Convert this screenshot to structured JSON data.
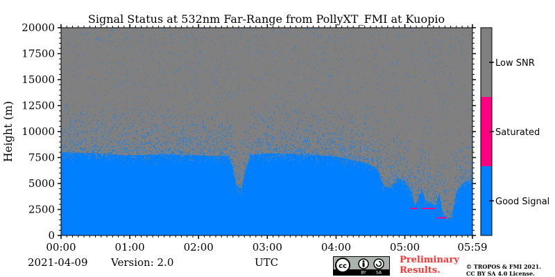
{
  "chart_data": {
    "type": "heatmap",
    "title": "Signal Status at 532nm Far-Range from PollyXT_FMI at Kuopio",
    "ylabel": "Height (m)",
    "xlabel": "UTC",
    "x_ticks": [
      "00:00",
      "01:00",
      "02:00",
      "03:00",
      "04:00",
      "05:00",
      "05:59"
    ],
    "x_range_hours": [
      0,
      5.9833
    ],
    "y_ticks": [
      0,
      2500,
      5000,
      7500,
      10000,
      12500,
      15000,
      17500,
      20000
    ],
    "ylim": [
      0,
      20000
    ],
    "categories": [
      {
        "name": "Low SNR",
        "color": "#808080"
      },
      {
        "name": "Saturated",
        "color": "#ff0080"
      },
      {
        "name": "Good Signal",
        "color": "#0080ff"
      }
    ],
    "good_signal_top_profile": [
      {
        "t": 0.0,
        "h": 8000
      },
      {
        "t": 0.5,
        "h": 7900
      },
      {
        "t": 1.0,
        "h": 7700
      },
      {
        "t": 1.5,
        "h": 7800
      },
      {
        "t": 2.0,
        "h": 7700
      },
      {
        "t": 2.45,
        "h": 7600
      },
      {
        "t": 2.5,
        "h": 6500
      },
      {
        "t": 2.55,
        "h": 4800
      },
      {
        "t": 2.62,
        "h": 4400
      },
      {
        "t": 2.68,
        "h": 6200
      },
      {
        "t": 2.75,
        "h": 7700
      },
      {
        "t": 3.0,
        "h": 7900
      },
      {
        "t": 3.5,
        "h": 7800
      },
      {
        "t": 4.0,
        "h": 7600
      },
      {
        "t": 4.4,
        "h": 7000
      },
      {
        "t": 4.6,
        "h": 6500
      },
      {
        "t": 4.7,
        "h": 4700
      },
      {
        "t": 4.8,
        "h": 4600
      },
      {
        "t": 4.9,
        "h": 5500
      },
      {
        "t": 5.0,
        "h": 5300
      },
      {
        "t": 5.1,
        "h": 4100
      },
      {
        "t": 5.15,
        "h": 2800
      },
      {
        "t": 5.25,
        "h": 4500
      },
      {
        "t": 5.3,
        "h": 3300
      },
      {
        "t": 5.45,
        "h": 2900
      },
      {
        "t": 5.5,
        "h": 4000
      },
      {
        "t": 5.55,
        "h": 2200
      },
      {
        "t": 5.6,
        "h": 1800
      },
      {
        "t": 5.68,
        "h": 1700
      },
      {
        "t": 5.75,
        "h": 4200
      },
      {
        "t": 5.85,
        "h": 5000
      },
      {
        "t": 5.9833,
        "h": 5500
      }
    ],
    "saturated_segments": [
      {
        "t_start": 5.08,
        "t_end": 5.18,
        "h": 2600
      },
      {
        "t_start": 5.25,
        "t_end": 5.45,
        "h": 2600
      },
      {
        "t_start": 5.47,
        "t_end": 5.6,
        "h": 1700
      }
    ]
  },
  "footer": {
    "date": "2021-04-09",
    "version": "Version: 2.0",
    "preliminary_line1": "Preliminary",
    "preliminary_line2": "Results.",
    "copyright_line1": "© TROPOS & FMI 2021.",
    "copyright_line2": "CC BY SA 4.0 License."
  },
  "license_badge": {
    "cc": "cc",
    "by": "BY",
    "sa": "SA"
  }
}
